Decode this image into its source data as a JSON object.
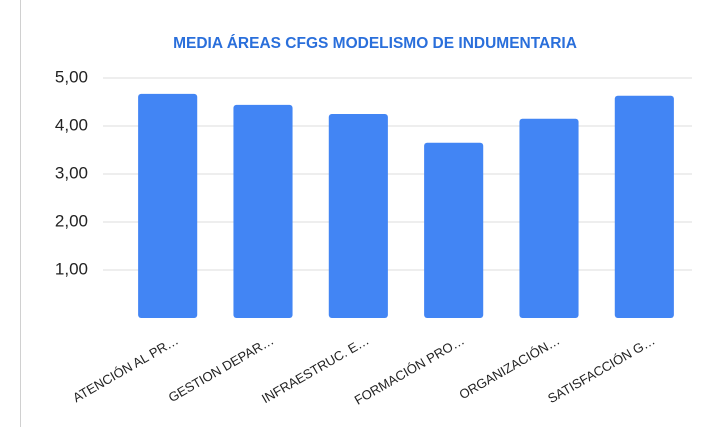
{
  "chart_data": {
    "type": "bar",
    "title": "MEDIA ÁREAS CFGS MODELISMO DE INDUMENTARIA",
    "categories": [
      "ATENCIÓN AL PR…",
      "GESTION DEPAR…",
      "INFRAESTRUC. E…",
      "FORMACIÓN PRO…",
      "ORGANIZACIÓN…",
      "SATISFACCIÓN G…"
    ],
    "values": [
      4.67,
      4.44,
      4.25,
      3.65,
      4.15,
      4.63
    ],
    "color": "#4285f4",
    "ylim": [
      0,
      5
    ],
    "yticks": [
      {
        "value": 1,
        "label": "1,00"
      },
      {
        "value": 2,
        "label": "2,00"
      },
      {
        "value": 3,
        "label": "3,00"
      },
      {
        "value": 4,
        "label": "4,00"
      },
      {
        "value": 5,
        "label": "5,00"
      }
    ],
    "grid": true
  }
}
